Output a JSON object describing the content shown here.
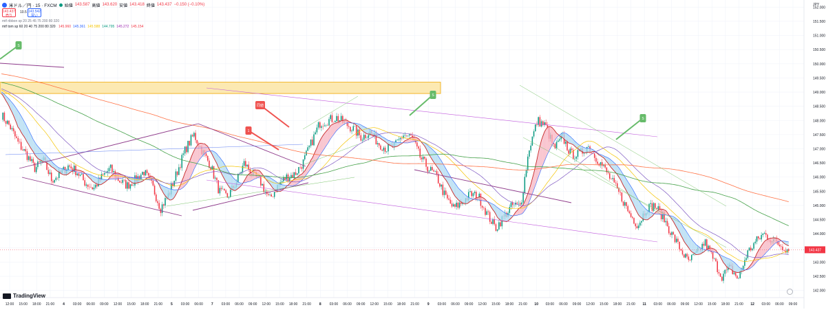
{
  "header": {
    "symbol": "米ドル／円 · 15 · FXCM",
    "open_label": "始値",
    "open": "143.587",
    "high_label": "高値",
    "high": "143.620",
    "low_label": "安値",
    "low": "143.418",
    "close_label": "終値",
    "close": "143.437",
    "change": "−0.150 (−0.10%)",
    "sell_price": "143.437",
    "sell_label": "売り",
    "spread": "10.5",
    "buy_price": "143.542",
    "buy_label": "買い"
  },
  "indicators": {
    "line1": "mtf ribbon sp 20 25 45 75 200 80 320",
    "line2_label": "mtf tom sp 60 20 40 75 200 80 320",
    "line2_values": [
      {
        "text": "145.960",
        "color": "#f23645"
      },
      {
        "text": "145.361",
        "color": "#2962ff"
      },
      {
        "text": "145.588",
        "color": "#f5c400"
      },
      {
        "text": "144.795",
        "color": "#089981"
      },
      {
        "text": "145.272",
        "color": "#9c27b0"
      },
      {
        "text": "145.154",
        "color": "#f23645"
      }
    ]
  },
  "branding": {
    "name": "TradingView"
  },
  "annotations": {
    "flag1": "1",
    "flag_ryo": "同値",
    "flag_s": "S"
  },
  "price_axis_unit": "JPY",
  "current_price_label": "143.437",
  "colors": {
    "candle_up": "#089981",
    "candle_down": "#f23645",
    "ribbon_bear": "#b3dcf2",
    "ribbon_bull": "#f7b8c4",
    "ma_red": "#c62828",
    "ma_blue": "#2962ff",
    "ma_yellow": "#f5c400",
    "ma_purple": "#7e57c2",
    "ma_green": "#43a047",
    "ma_orange": "#ff7043",
    "zone": "#fce9b2",
    "zone_border": "#f0a800",
    "trend_purple": "#8e3a8a",
    "trend_violet": "#c158dc",
    "trend_blue": "#5b7bf0",
    "trend_green": "#7ac46a",
    "flag_green": "#66bb6a",
    "flag_red": "#ef5350",
    "price_tag": "#f23645"
  },
  "chart_data": {
    "type": "candlestick",
    "title": "",
    "ylim": [
      141.75,
      152.25
    ],
    "y_ticks": [
      "142.000",
      "142.500",
      "143.000",
      "143.500",
      "144.000",
      "144.500",
      "145.000",
      "145.500",
      "146.000",
      "146.500",
      "147.000",
      "147.500",
      "148.000",
      "148.500",
      "149.000",
      "149.500",
      "150.000",
      "150.500",
      "151.000",
      "151.500",
      "152.000"
    ],
    "x_ticks": [
      "12:00",
      "15:00",
      "18:00",
      "21:00",
      "4",
      "03:00",
      "06:00",
      "09:00",
      "12:00",
      "15:00",
      "18:00",
      "21:00",
      "5",
      "03:00",
      "06:00",
      "7",
      "03:00",
      "06:00",
      "09:00",
      "12:00",
      "15:00",
      "18:00",
      "21:00",
      "8",
      "03:00",
      "06:00",
      "09:00",
      "12:00",
      "15:00",
      "18:00",
      "21:00",
      "9",
      "03:00",
      "06:00",
      "09:00",
      "12:00",
      "15:00",
      "18:00",
      "21:00",
      "10",
      "03:00",
      "06:00",
      "09:00",
      "12:00",
      "15:00",
      "18:00",
      "21:00",
      "11",
      "03:00",
      "06:00",
      "09:00",
      "12:00",
      "15:00",
      "18:00",
      "21:00",
      "12",
      "03:00",
      "06:00",
      "09:00"
    ],
    "close_path": [
      148.2,
      147.8,
      147.2,
      146.8,
      146.3,
      146.6,
      145.9,
      146.1,
      146.4,
      146.2,
      145.8,
      145.6,
      146.0,
      146.3,
      145.9,
      145.7,
      145.9,
      146.2,
      145.7,
      144.9,
      145.4,
      146.2,
      147.0,
      147.5,
      146.9,
      146.4,
      145.5,
      145.3,
      145.8,
      146.5,
      146.1,
      145.8,
      145.2,
      145.7,
      146.0,
      146.1,
      146.5,
      147.2,
      147.9,
      148.0,
      148.1,
      147.9,
      147.7,
      147.4,
      147.6,
      147.2,
      147.0,
      147.1,
      147.5,
      147.4,
      146.7,
      146.3,
      146.0,
      145.3,
      144.9,
      145.1,
      145.4,
      145.3,
      144.7,
      144.2,
      144.6,
      145.0,
      145.0,
      147.0,
      148.0,
      147.8,
      147.0,
      147.4,
      146.8,
      146.8,
      147.1,
      146.7,
      146.3,
      145.8,
      145.3,
      144.7,
      144.3,
      144.9,
      145.0,
      144.6,
      144.0,
      143.5,
      143.0,
      143.3,
      143.7,
      143.1,
      142.5,
      142.8,
      142.4,
      143.3,
      143.7,
      144.0,
      143.8,
      143.6,
      143.44
    ]
  }
}
